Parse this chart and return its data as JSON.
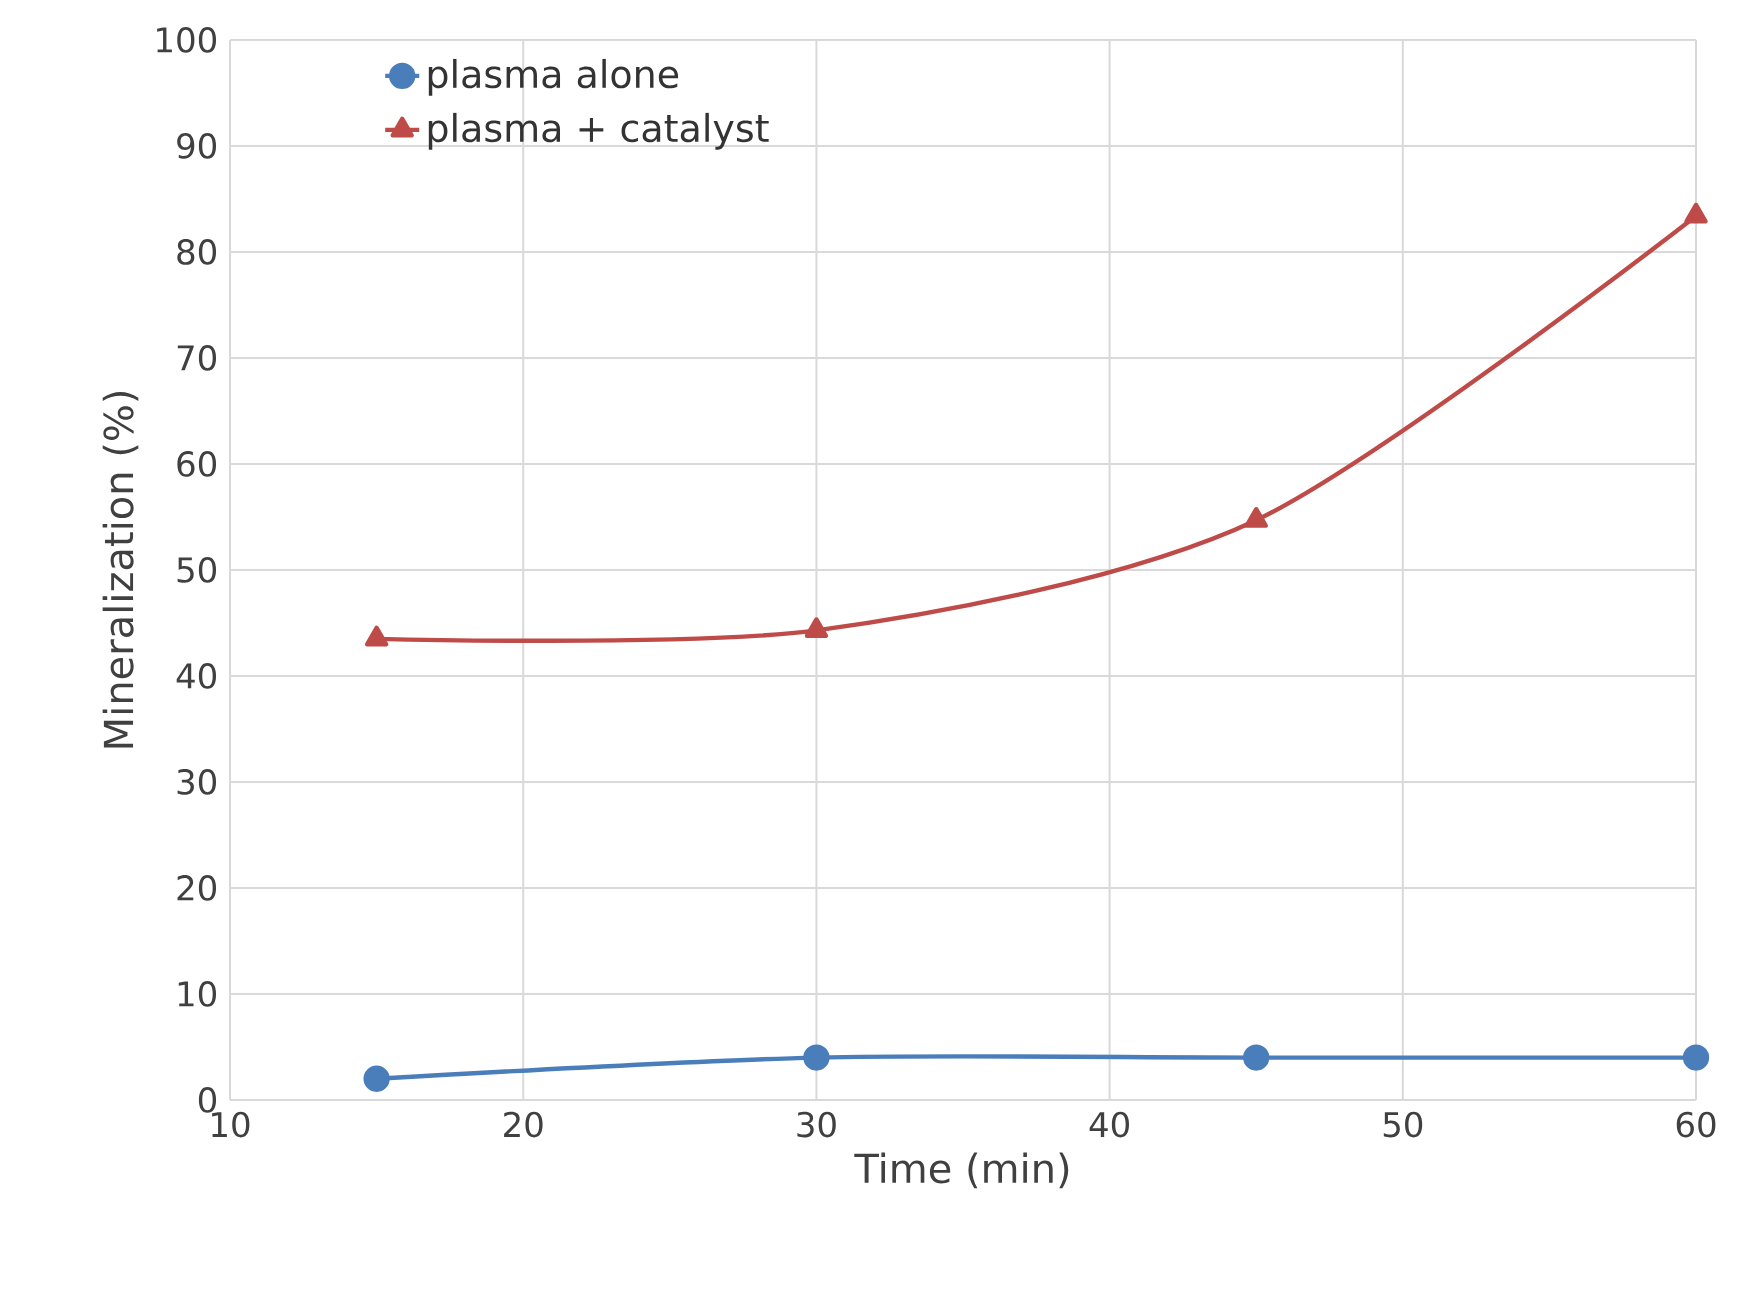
{
  "chart_data": {
    "type": "line",
    "xlabel": "Time (min)",
    "ylabel": "Mineralization (%)",
    "x": [
      15,
      30,
      45,
      60
    ],
    "series": [
      {
        "name": "plasma alone",
        "color": "#4a7ebb",
        "marker": "circle",
        "values": [
          2,
          4,
          4,
          4
        ]
      },
      {
        "name": "plasma + catalyst",
        "color": "#be4b48",
        "marker": "triangle",
        "values": [
          43.5,
          44.3,
          54.7,
          83.4
        ]
      }
    ],
    "xlim": [
      10,
      60
    ],
    "xticks": [
      10,
      20,
      30,
      40,
      50,
      60
    ],
    "ylim": [
      0,
      100
    ],
    "yticks": [
      0,
      10,
      20,
      30,
      40,
      50,
      60,
      70,
      80,
      90,
      100
    ],
    "grid": true,
    "legend": "top left",
    "line_style": "solid"
  }
}
